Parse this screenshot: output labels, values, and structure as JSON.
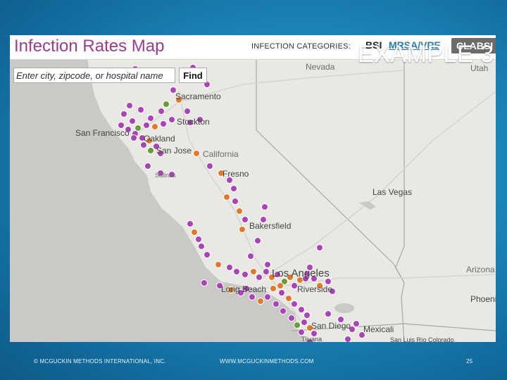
{
  "slide": {
    "title": "EXAMPLE 3",
    "footer_left": "© MCGUCKIN METHODS INTERNATIONAL, INC.",
    "footer_center": "WWW.MCGUCKINMETHODS.COM",
    "page_number": "25"
  },
  "map": {
    "title": "Infection Rates Map",
    "categories_label": "INFECTION CATEGORIES:",
    "categories": [
      {
        "label": "BSI",
        "state": "default"
      },
      {
        "label": "MRSA/VRE",
        "state": "link"
      },
      {
        "label": "CLABSI",
        "state": "selected"
      }
    ],
    "search_placeholder": "Enter city, zipcode, or hospital name",
    "find_label": "Find",
    "places": {
      "nevada": "Nevada",
      "utah": "Utah",
      "sacramento": "Sacramento",
      "san_francisco": "San Francisco",
      "stockton": "Stockton",
      "oakland": "Oakland",
      "san_jose": "San Jose",
      "california": "California",
      "salinas": "Salinas",
      "fresno": "Fresno",
      "las_vegas": "Las Vegas",
      "bakersfield": "Bakersfield",
      "los_angeles": "Los Angeles",
      "long_beach": "Long Beach",
      "riverside": "Riverside",
      "arizona": "Arizona",
      "phoenix": "Phoenix",
      "san_diego": "San Diego",
      "mexicali": "Mexicali",
      "tijuana": "Tijuana",
      "san_luis": "San Luis Río Colorado"
    },
    "colors": {
      "marker_purple": "#a844b5",
      "marker_orange": "#e07a2a",
      "marker_green": "#6a9a3a",
      "marker_gray": "#8a8a8a",
      "land": "#e9e8e3",
      "ocean": "#c9c9c6",
      "title": "#9a3b8c"
    }
  }
}
